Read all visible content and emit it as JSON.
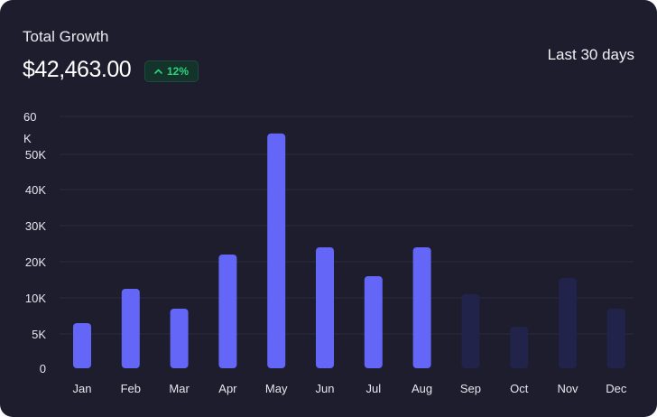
{
  "card": {
    "title": "Total Growth",
    "amount": "$42,463.00",
    "change": "12%",
    "change_icon": "chevron-up-icon",
    "range_label": "Last 30 days"
  },
  "colors": {
    "background": "#1d1d2e",
    "bar": "#6366f6",
    "bar_faded": "#22234a",
    "badge_text": "#2bd67b",
    "badge_bg": "#13332b",
    "grid": "#2c2c40"
  },
  "chart_data": {
    "type": "bar",
    "title": "Total Growth",
    "xlabel": "",
    "ylabel": "",
    "ylim": [
      0,
      60000
    ],
    "yticks": [
      {
        "value": 0,
        "label": "0"
      },
      {
        "value": 5000,
        "label": "5K"
      },
      {
        "value": 10000,
        "label": "10K"
      },
      {
        "value": 20000,
        "label": "20K"
      },
      {
        "value": 30000,
        "label": "30K"
      },
      {
        "value": 40000,
        "label": "40K"
      },
      {
        "value": 50000,
        "label": "50K"
      },
      {
        "value": 60000,
        "label": "60 K"
      }
    ],
    "categories": [
      "Jan",
      "Feb",
      "Mar",
      "Apr",
      "May",
      "Jun",
      "Jul",
      "Aug",
      "Sep",
      "Oct",
      "Nov",
      "Dec"
    ],
    "values": [
      6500,
      12500,
      8500,
      22000,
      55500,
      24000,
      16000,
      24000,
      11000,
      6000,
      15500,
      8500
    ],
    "active": [
      true,
      true,
      true,
      true,
      true,
      true,
      true,
      true,
      false,
      false,
      false,
      false
    ]
  }
}
